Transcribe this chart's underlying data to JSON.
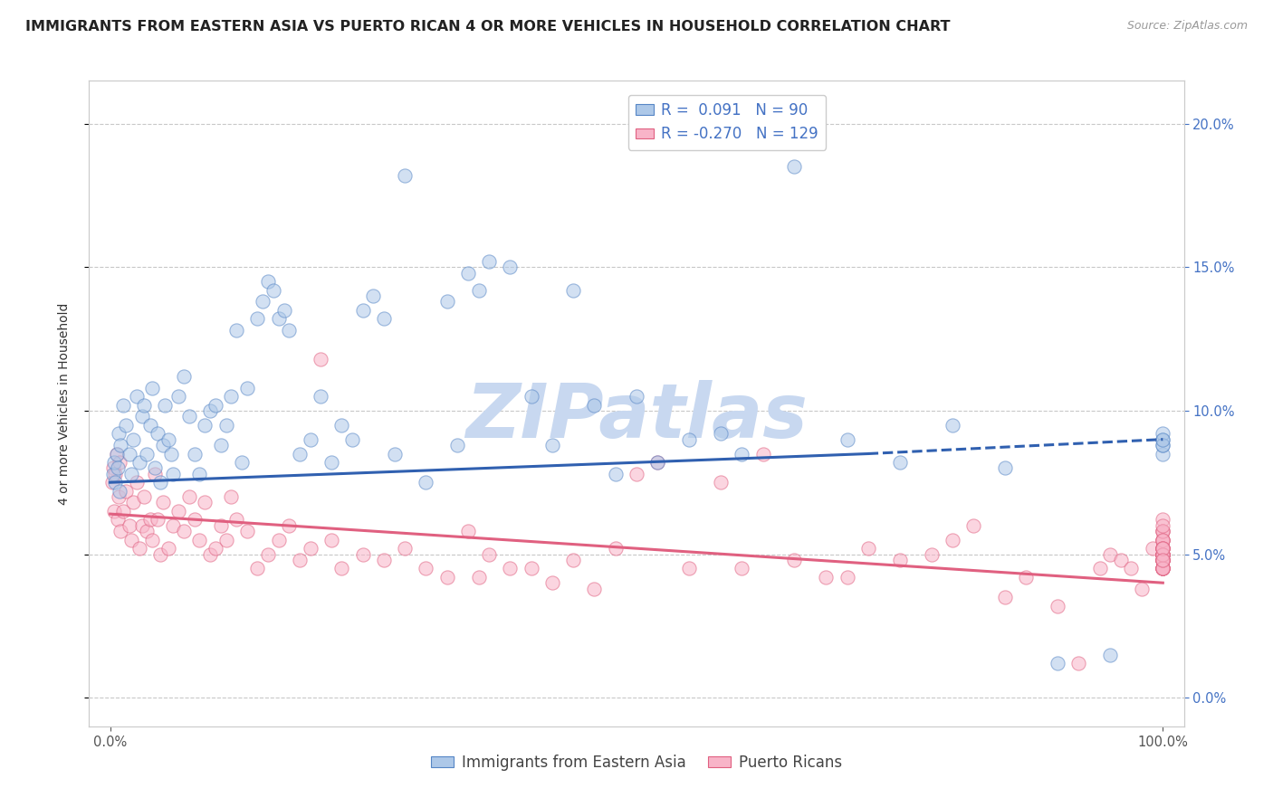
{
  "title": "IMMIGRANTS FROM EASTERN ASIA VS PUERTO RICAN 4 OR MORE VEHICLES IN HOUSEHOLD CORRELATION CHART",
  "source": "Source: ZipAtlas.com",
  "ylabel": "4 or more Vehicles in Household",
  "xlim": [
    -2.0,
    102.0
  ],
  "ylim": [
    -1.0,
    21.5
  ],
  "xtick_positions": [
    0.0,
    100.0
  ],
  "xtick_labels": [
    "0.0%",
    "100.0%"
  ],
  "ytick_positions": [
    0.0,
    5.0,
    10.0,
    15.0,
    20.0
  ],
  "ytick_labels": [
    "0.0%",
    "5.0%",
    "10.0%",
    "15.0%",
    "20.0%"
  ],
  "blue_R": "0.091",
  "blue_N": "90",
  "pink_R": "-0.270",
  "pink_N": "129",
  "blue_dot_color": "#adc8e8",
  "blue_edge_color": "#5585c5",
  "pink_dot_color": "#f8b4c8",
  "pink_edge_color": "#e06080",
  "blue_line_color": "#3060b0",
  "pink_line_color": "#e06080",
  "right_tick_color": "#4472c4",
  "bottom_tick_color": "#555555",
  "title_color": "#222222",
  "ylabel_color": "#333333",
  "legend_color": "#4472c4",
  "watermark_color": "#c8d8f0",
  "background_color": "#ffffff",
  "grid_color": "#c8c8c8",
  "blue_trendline_x": [
    0.0,
    72.0,
    100.0
  ],
  "blue_trendline_y": [
    7.5,
    8.5,
    9.0
  ],
  "blue_solid_end_idx": 1,
  "pink_trendline_x": [
    0.0,
    100.0
  ],
  "pink_trendline_y": [
    6.4,
    4.0
  ],
  "blue_scatter_x": [
    0.3,
    0.4,
    0.5,
    0.6,
    0.7,
    0.8,
    0.9,
    1.0,
    1.2,
    1.5,
    1.8,
    2.0,
    2.2,
    2.5,
    2.8,
    3.0,
    3.2,
    3.5,
    3.8,
    4.0,
    4.2,
    4.5,
    4.8,
    5.0,
    5.2,
    5.5,
    5.8,
    6.0,
    6.5,
    7.0,
    7.5,
    8.0,
    8.5,
    9.0,
    9.5,
    10.0,
    10.5,
    11.0,
    11.5,
    12.0,
    12.5,
    13.0,
    14.0,
    14.5,
    15.0,
    15.5,
    16.0,
    16.5,
    17.0,
    18.0,
    19.0,
    20.0,
    21.0,
    22.0,
    23.0,
    24.0,
    25.0,
    26.0,
    27.0,
    28.0,
    30.0,
    32.0,
    33.0,
    34.0,
    35.0,
    36.0,
    38.0,
    40.0,
    42.0,
    44.0,
    46.0,
    48.0,
    50.0,
    52.0,
    55.0,
    58.0,
    60.0,
    65.0,
    70.0,
    75.0,
    80.0,
    85.0,
    90.0,
    95.0,
    100.0,
    100.0,
    100.0,
    100.0,
    100.0,
    100.0
  ],
  "blue_scatter_y": [
    7.8,
    8.2,
    7.5,
    8.5,
    8.0,
    9.2,
    7.2,
    8.8,
    10.2,
    9.5,
    8.5,
    7.8,
    9.0,
    10.5,
    8.2,
    9.8,
    10.2,
    8.5,
    9.5,
    10.8,
    8.0,
    9.2,
    7.5,
    8.8,
    10.2,
    9.0,
    8.5,
    7.8,
    10.5,
    11.2,
    9.8,
    8.5,
    7.8,
    9.5,
    10.0,
    10.2,
    8.8,
    9.5,
    10.5,
    12.8,
    8.2,
    10.8,
    13.2,
    13.8,
    14.5,
    14.2,
    13.2,
    13.5,
    12.8,
    8.5,
    9.0,
    10.5,
    8.2,
    9.5,
    9.0,
    13.5,
    14.0,
    13.2,
    8.5,
    18.2,
    7.5,
    13.8,
    8.8,
    14.8,
    14.2,
    15.2,
    15.0,
    10.5,
    8.8,
    14.2,
    10.2,
    7.8,
    10.5,
    8.2,
    9.0,
    9.2,
    8.5,
    18.5,
    9.0,
    8.2,
    9.5,
    8.0,
    1.2,
    1.5,
    9.0,
    8.5,
    8.8,
    9.2,
    8.8,
    9.0
  ],
  "pink_scatter_x": [
    0.2,
    0.3,
    0.4,
    0.5,
    0.6,
    0.7,
    0.8,
    0.9,
    1.0,
    1.2,
    1.5,
    1.8,
    2.0,
    2.2,
    2.5,
    2.8,
    3.0,
    3.2,
    3.5,
    3.8,
    4.0,
    4.2,
    4.5,
    4.8,
    5.0,
    5.5,
    6.0,
    6.5,
    7.0,
    7.5,
    8.0,
    8.5,
    9.0,
    9.5,
    10.0,
    10.5,
    11.0,
    11.5,
    12.0,
    13.0,
    14.0,
    15.0,
    16.0,
    17.0,
    18.0,
    19.0,
    20.0,
    21.0,
    22.0,
    24.0,
    26.0,
    28.0,
    30.0,
    32.0,
    34.0,
    35.0,
    36.0,
    38.0,
    40.0,
    42.0,
    44.0,
    46.0,
    48.0,
    50.0,
    52.0,
    55.0,
    58.0,
    60.0,
    62.0,
    65.0,
    68.0,
    70.0,
    72.0,
    75.0,
    78.0,
    80.0,
    82.0,
    85.0,
    87.0,
    90.0,
    92.0,
    94.0,
    95.0,
    96.0,
    97.0,
    98.0,
    99.0,
    100.0,
    100.0,
    100.0,
    100.0,
    100.0,
    100.0,
    100.0,
    100.0,
    100.0,
    100.0,
    100.0,
    100.0,
    100.0,
    100.0,
    100.0,
    100.0,
    100.0,
    100.0,
    100.0,
    100.0,
    100.0,
    100.0,
    100.0,
    100.0,
    100.0,
    100.0,
    100.0,
    100.0,
    100.0,
    100.0,
    100.0,
    100.0,
    100.0,
    100.0,
    100.0,
    100.0,
    100.0,
    100.0
  ],
  "pink_scatter_y": [
    7.5,
    8.0,
    6.5,
    7.8,
    8.5,
    6.2,
    7.0,
    8.2,
    5.8,
    6.5,
    7.2,
    6.0,
    5.5,
    6.8,
    7.5,
    5.2,
    6.0,
    7.0,
    5.8,
    6.2,
    5.5,
    7.8,
    6.2,
    5.0,
    6.8,
    5.2,
    6.0,
    6.5,
    5.8,
    7.0,
    6.2,
    5.5,
    6.8,
    5.0,
    5.2,
    6.0,
    5.5,
    7.0,
    6.2,
    5.8,
    4.5,
    5.0,
    5.5,
    6.0,
    4.8,
    5.2,
    11.8,
    5.5,
    4.5,
    5.0,
    4.8,
    5.2,
    4.5,
    4.2,
    5.8,
    4.2,
    5.0,
    4.5,
    4.5,
    4.0,
    4.8,
    3.8,
    5.2,
    7.8,
    8.2,
    4.5,
    7.5,
    4.5,
    8.5,
    4.8,
    4.2,
    4.2,
    5.2,
    4.8,
    5.0,
    5.5,
    6.0,
    3.5,
    4.2,
    3.2,
    1.2,
    4.5,
    5.0,
    4.8,
    4.5,
    3.8,
    5.2,
    5.0,
    5.8,
    6.2,
    5.0,
    4.8,
    4.5,
    5.5,
    5.2,
    4.8,
    5.0,
    4.8,
    5.5,
    5.2,
    4.5,
    5.0,
    5.8,
    4.5,
    5.2,
    5.0,
    4.8,
    5.5,
    4.5,
    5.8,
    5.0,
    4.8,
    5.2,
    4.5,
    5.0,
    4.8,
    4.5,
    5.5,
    6.0,
    5.2,
    4.8,
    4.5,
    5.0,
    5.2,
    4.8
  ],
  "dot_size": 120,
  "dot_alpha": 0.55,
  "dot_linewidth": 0.8,
  "title_fontsize": 11.5,
  "axis_label_fontsize": 10,
  "tick_fontsize": 10.5,
  "legend_fontsize": 12,
  "watermark_fontsize": 60
}
